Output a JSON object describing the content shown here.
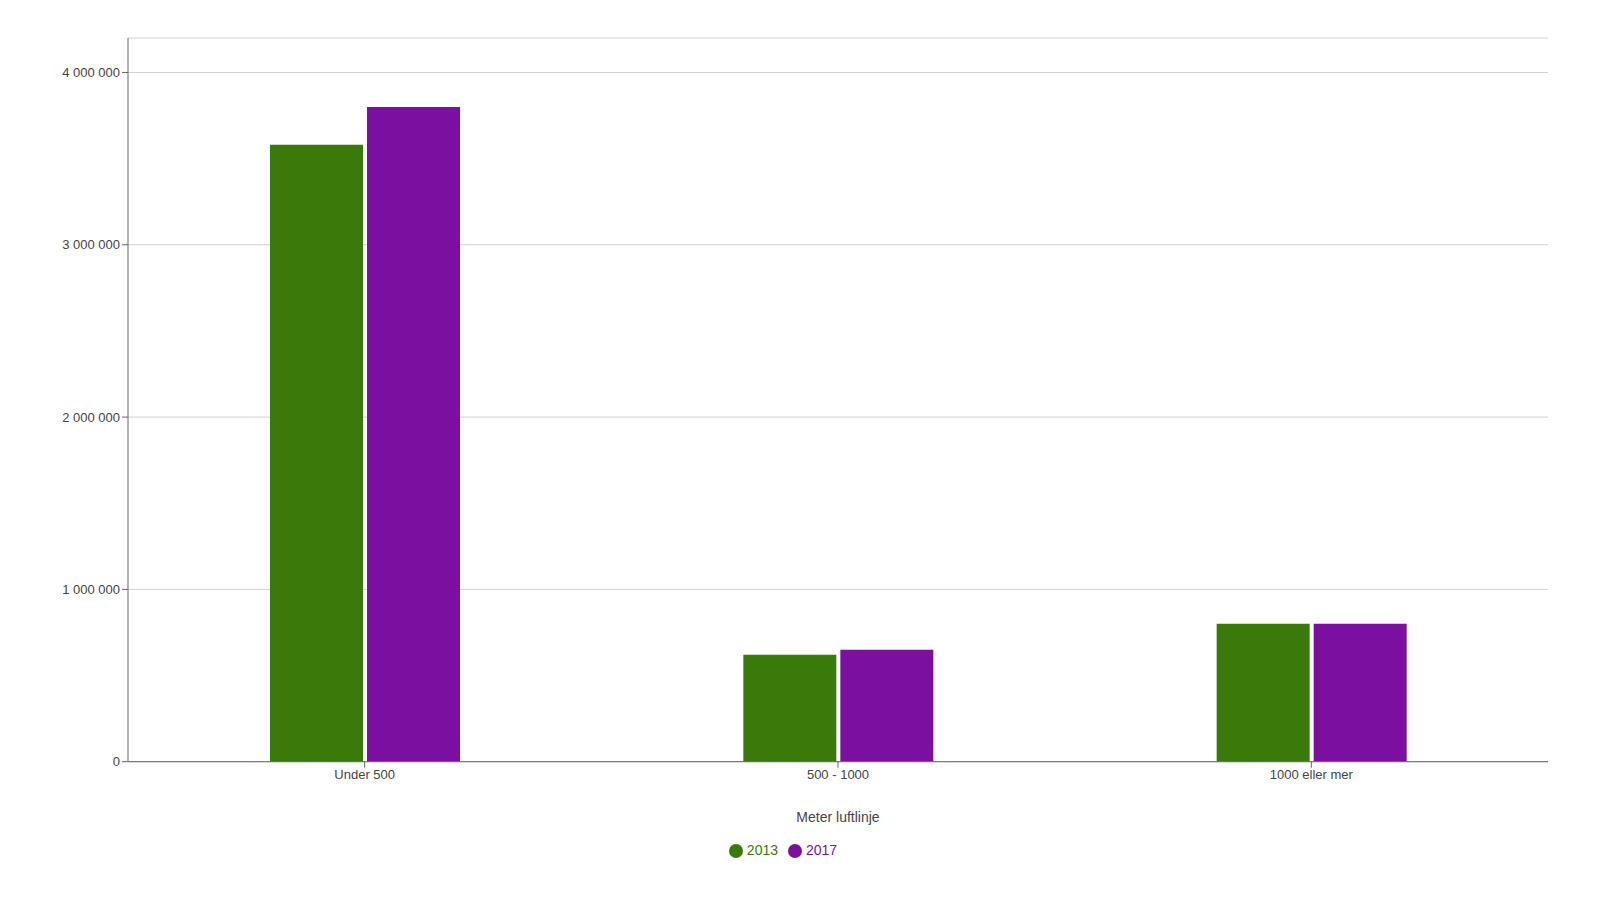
{
  "chart_data": {
    "type": "bar",
    "xlabel": "Meter luftlinje",
    "categories": [
      "Under 500",
      "500 - 1000",
      "1000 eller mer"
    ],
    "series": [
      {
        "name": "2013",
        "color": "#3a7a0a",
        "values": [
          3580000,
          620000,
          800000
        ]
      },
      {
        "name": "2017",
        "color": "#7b0fa0",
        "values": [
          3800000,
          650000,
          800000
        ]
      }
    ],
    "ylim": [
      0,
      4200000
    ],
    "yticks": [
      0,
      {
        "value": 1000000,
        "label": "1 000 000"
      },
      {
        "value": 2000000,
        "label": "2 000 000"
      },
      {
        "value": 3000000,
        "label": "3 000 000"
      },
      {
        "value": 4000000,
        "label": "4 000 000"
      }
    ],
    "grid": true,
    "legend": "bottom"
  }
}
